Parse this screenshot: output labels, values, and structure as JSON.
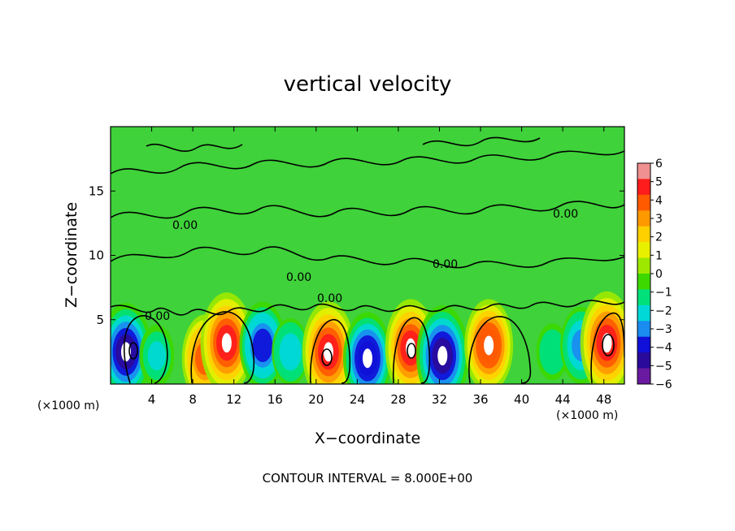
{
  "chart_data": {
    "type": "heatmap",
    "title": "vertical velocity",
    "xlabel": "X−coordinate",
    "ylabel": "Z−coordinate",
    "x_units_label": "(×1000 m)",
    "x_units_label_right": "(×1000 m)",
    "xlim": [
      0,
      50
    ],
    "ylim": [
      0,
      20
    ],
    "xticks": [
      4,
      8,
      12,
      16,
      20,
      24,
      28,
      32,
      36,
      40,
      44,
      48
    ],
    "yticks": [
      5,
      10,
      15
    ],
    "colorbar": {
      "levels": [
        6,
        5,
        4,
        3,
        2,
        1,
        0,
        -1,
        -2,
        -3,
        -4,
        -5,
        -6
      ],
      "tick_labels": [
        "6",
        "5",
        "4",
        "3",
        "2",
        "1",
        "0",
        "−1",
        "−2",
        "−3",
        "−4",
        "−5",
        "−6"
      ],
      "colors": [
        "#f09090",
        "#ff1c1c",
        "#ff5a00",
        "#ff9900",
        "#ffd000",
        "#e8f000",
        "#9ee800",
        "#3cd800",
        "#00e07a",
        "#00d8d8",
        "#1a8cf0",
        "#1010d8",
        "#2a0a9a",
        "#6a1aa0"
      ]
    },
    "contour_interval_text": "CONTOUR INTERVAL = 8.000E+00",
    "contour_labels": [
      "0.00",
      "0.00",
      "0.00",
      "0.00",
      "0.00",
      "0.00"
    ],
    "cells": [
      {
        "x": 1.5,
        "z": 2.5,
        "w": -5.5
      },
      {
        "x": 4.5,
        "z": 2.2,
        "w": -2.0
      },
      {
        "x": 9.2,
        "z": 2.0,
        "w": 4.5
      },
      {
        "x": 11.3,
        "z": 3.2,
        "w": 5.8
      },
      {
        "x": 14.8,
        "z": 3.0,
        "w": -4.5
      },
      {
        "x": 17.5,
        "z": 2.5,
        "w": -2.5
      },
      {
        "x": 21.2,
        "z": 2.5,
        "w": 5.8
      },
      {
        "x": 25.0,
        "z": 2.0,
        "w": -5.0
      },
      {
        "x": 29.2,
        "z": 2.8,
        "w": 5.5
      },
      {
        "x": 32.3,
        "z": 2.2,
        "w": -5.8
      },
      {
        "x": 36.8,
        "z": 3.0,
        "w": 5.0
      },
      {
        "x": 43.0,
        "z": 2.5,
        "w": -1.5
      },
      {
        "x": 45.8,
        "z": 3.0,
        "w": -3.5
      },
      {
        "x": 48.3,
        "z": 3.2,
        "w": 6.0
      }
    ]
  }
}
